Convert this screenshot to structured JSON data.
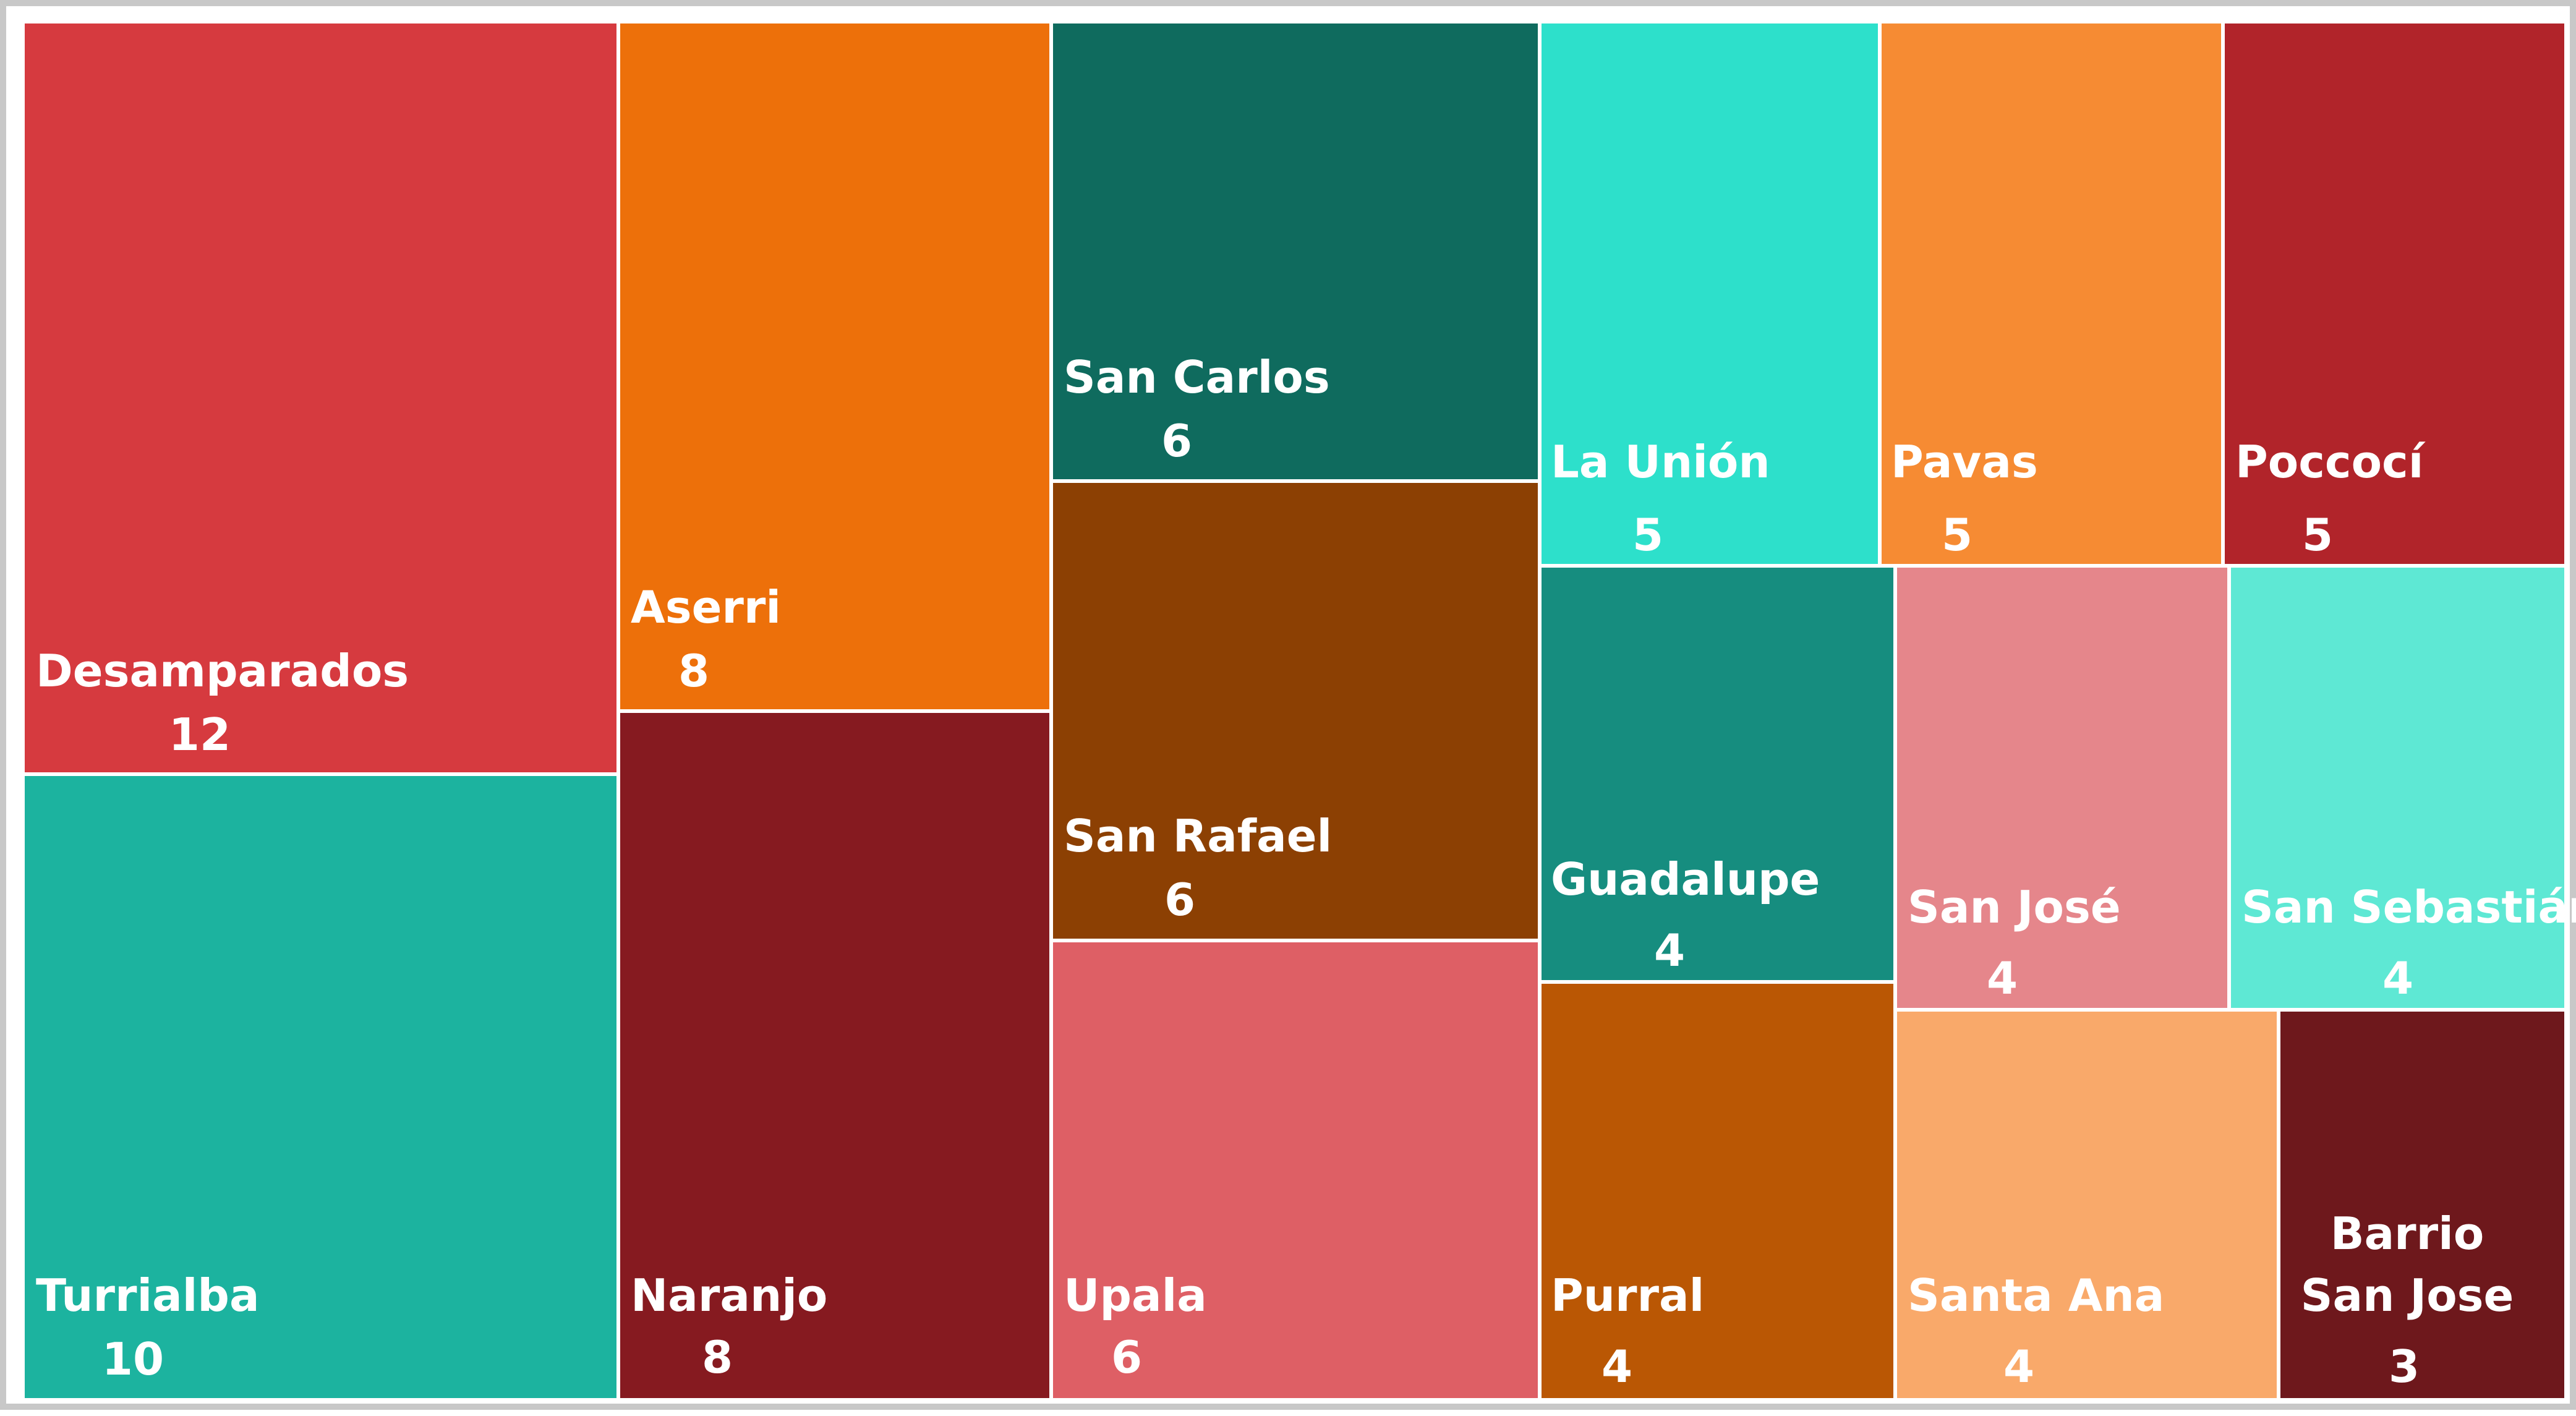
{
  "chart_data": {
    "type": "treemap",
    "title": "",
    "items": [
      {
        "label": "Desamparados",
        "value": 12,
        "color": "#d63a3f"
      },
      {
        "label": "Turrialba",
        "value": 10,
        "color": "#1cb39f"
      },
      {
        "label": "Aserri",
        "value": 8,
        "color": "#ed700a"
      },
      {
        "label": "Naranjo",
        "value": 8,
        "color": "#861a20"
      },
      {
        "label": "San Carlos",
        "value": 6,
        "color": "#0f6b5e"
      },
      {
        "label": "San Rafael",
        "value": 6,
        "color": "#8c4003"
      },
      {
        "label": "Upala",
        "value": 6,
        "color": "#de5f65"
      },
      {
        "label": "La Unión",
        "value": 5,
        "color": "#2de0cb"
      },
      {
        "label": "Pavas",
        "value": 5,
        "color": "#f68b33"
      },
      {
        "label": "Poccocí",
        "value": 5,
        "color": "#b1242a"
      },
      {
        "label": "Guadalupe",
        "value": 4,
        "color": "#168d7f"
      },
      {
        "label": "San José",
        "value": 4,
        "color": "#e5868b"
      },
      {
        "label": "San Sebastián",
        "value": 4,
        "color": "#5ee8d4"
      },
      {
        "label": "Purral",
        "value": 4,
        "color": "#ba5704"
      },
      {
        "label": "Santa Ana",
        "value": 4,
        "color": "#f9a96a"
      },
      {
        "label": "Barrio San Jose",
        "value": 3,
        "color": "#6e181c"
      }
    ]
  }
}
